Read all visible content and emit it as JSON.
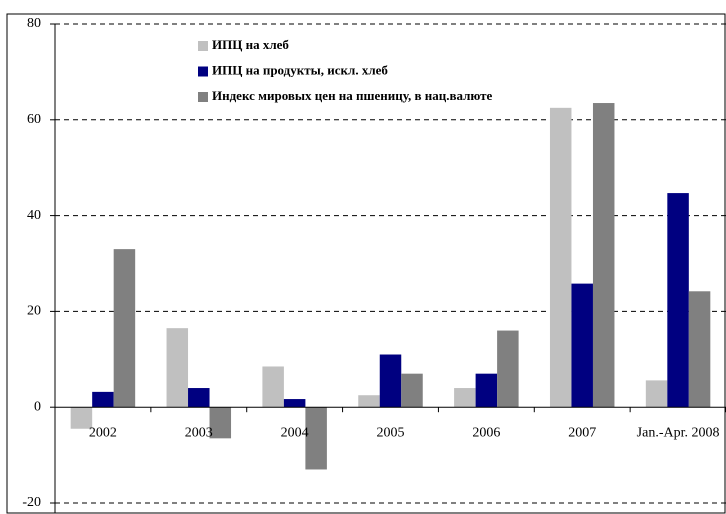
{
  "chart_data": {
    "type": "bar",
    "categories": [
      "2002",
      "2003",
      "2004",
      "2005",
      "2006",
      "2007",
      "Jan.-Apr. 2008"
    ],
    "series": [
      {
        "name": "ИПЦ на хлеб",
        "color": "#c0c0c0",
        "values": [
          -4.5,
          16.5,
          8.5,
          2.5,
          4,
          62.5,
          5.6
        ]
      },
      {
        "name": "ИПЦ на продукты, искл. хлеб",
        "color": "#000080",
        "values": [
          3.2,
          4,
          1.7,
          11,
          7,
          25.8,
          44.7
        ]
      },
      {
        "name": "Индекс мировых цен на пшеницу, в нац.валюте",
        "color": "#808080",
        "values": [
          33,
          -6.5,
          -13,
          7,
          16,
          63.5,
          24.2
        ]
      }
    ],
    "ylim": [
      -20,
      80
    ],
    "yticks": [
      -20,
      0,
      20,
      40,
      60,
      80
    ],
    "grid": true
  }
}
